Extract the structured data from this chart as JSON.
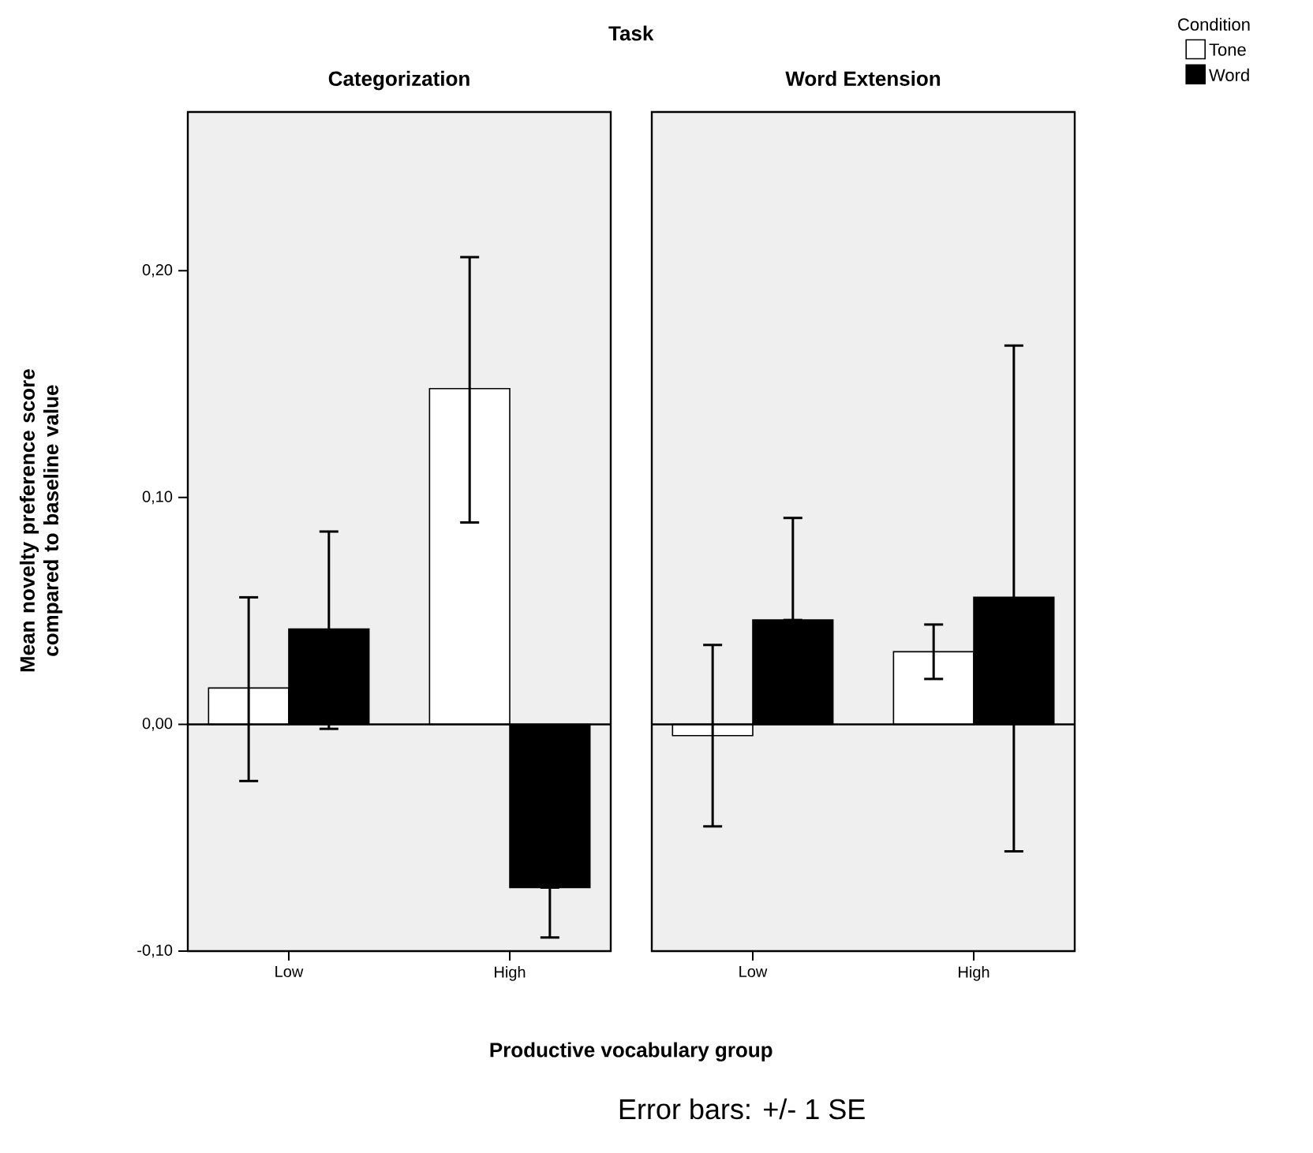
{
  "chart_data": [
    {
      "type": "bar",
      "title": "Categorization",
      "xlabel": "Productive vocabulary group",
      "ylabel": "Mean novelty preference score compared to baseline value",
      "annotations": [
        "Task",
        "Error bars: +/- 1 SE"
      ],
      "categories": [
        "Low",
        "High"
      ],
      "series": [
        {
          "color": "#ffffff",
          "values": [
            0.016,
            0.148
          ],
          "errors": [
            [
              -0.025,
              0.056
            ],
            [
              0.089,
              0.206
            ]
          ]
        },
        {
          "color": "#000000",
          "values": [
            0.042,
            -0.072
          ],
          "errors": [
            [
              -0.002,
              0.085
            ],
            [
              -0.094,
              -0.072
            ]
          ]
        }
      ],
      "ylim": [
        -0.1,
        0.27
      ],
      "yticks": [
        {
          "value": -0.1,
          "label": "-0,10"
        },
        {
          "value": 0,
          "label": "0,00"
        },
        {
          "value": 0.1,
          "label": "0,10"
        },
        {
          "value": 0.2,
          "label": "0,20"
        }
      ],
      "ref_lines": [
        {
          "axis": "y",
          "value": 0
        }
      ]
    },
    {
      "type": "bar",
      "title": "Word Extension",
      "legend_title": "Condition",
      "categories": [
        "Low",
        "High"
      ],
      "series": [
        {
          "name": "Tone",
          "color": "#ffffff",
          "values": [
            -0.005,
            0.032
          ],
          "errors": [
            [
              -0.045,
              0.035
            ],
            [
              0.02,
              0.044
            ]
          ]
        },
        {
          "name": "Word",
          "color": "#000000",
          "values": [
            0.046,
            0.056
          ],
          "errors": [
            [
              0.046,
              0.091
            ],
            [
              -0.056,
              0.167
            ]
          ]
        }
      ],
      "ylim": [
        -0.1,
        0.27
      ],
      "tick_labels": "x",
      "legend": "top right",
      "ref_lines": [
        {
          "axis": "y",
          "value": 0
        }
      ]
    }
  ]
}
